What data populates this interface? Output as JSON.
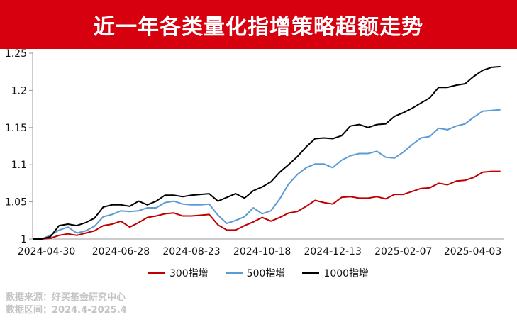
{
  "header": {
    "title": "近一年各类量化指增策略超额走势"
  },
  "footer": {
    "source_line": "数据来源：好买基金研究中心",
    "range_line": "数据区间：2024.4-2025.4"
  },
  "chart_data": {
    "type": "line",
    "title": "近一年各类量化指增策略超额走势",
    "xlabel": "",
    "ylabel": "",
    "ylim": [
      1,
      1.25
    ],
    "yticks": [
      "1",
      "1.05",
      "1.1",
      "1.15",
      "1.2",
      "1.25"
    ],
    "x_tick_labels": [
      "2024-04-30",
      "2024-06-28",
      "2024-08-23",
      "2024-10-18",
      "2024-12-13",
      "2025-02-07",
      "2025-04-03"
    ],
    "legend_position": "bottom",
    "grid": false,
    "x": [
      "2024-04-19",
      "2024-04-26",
      "2024-05-03",
      "2024-05-10",
      "2024-05-17",
      "2024-05-24",
      "2024-05-31",
      "2024-06-07",
      "2024-06-14",
      "2024-06-21",
      "2024-06-28",
      "2024-07-05",
      "2024-07-12",
      "2024-07-19",
      "2024-07-26",
      "2024-08-02",
      "2024-08-09",
      "2024-08-16",
      "2024-08-23",
      "2024-08-30",
      "2024-09-06",
      "2024-09-13",
      "2024-09-20",
      "2024-09-27",
      "2024-10-04",
      "2024-10-11",
      "2024-10-18",
      "2024-10-25",
      "2024-11-01",
      "2024-11-08",
      "2024-11-15",
      "2024-11-22",
      "2024-11-29",
      "2024-12-06",
      "2024-12-13",
      "2024-12-20",
      "2024-12-27",
      "2025-01-03",
      "2025-01-10",
      "2025-01-17",
      "2025-01-24",
      "2025-01-31",
      "2025-02-07",
      "2025-02-14",
      "2025-02-21",
      "2025-02-28",
      "2025-03-07",
      "2025-03-14",
      "2025-03-21",
      "2025-03-28",
      "2025-04-04",
      "2025-04-11",
      "2025-04-18",
      "2025-04-25"
    ],
    "series": [
      {
        "name": "300指增",
        "color": "#c00000",
        "values": [
          1.0,
          1.0,
          1.001,
          1.005,
          1.007,
          1.005,
          1.008,
          1.011,
          1.018,
          1.02,
          1.024,
          1.016,
          1.022,
          1.029,
          1.031,
          1.034,
          1.035,
          1.031,
          1.031,
          1.032,
          1.033,
          1.019,
          1.012,
          1.012,
          1.018,
          1.023,
          1.029,
          1.024,
          1.029,
          1.035,
          1.037,
          1.044,
          1.052,
          1.049,
          1.047,
          1.056,
          1.057,
          1.055,
          1.055,
          1.057,
          1.054,
          1.06,
          1.06,
          1.064,
          1.068,
          1.069,
          1.075,
          1.073,
          1.078,
          1.079,
          1.083,
          1.09,
          1.091,
          1.091
        ]
      },
      {
        "name": "500指增",
        "color": "#5b9bd5",
        "values": [
          1.0,
          1.0,
          1.005,
          1.012,
          1.016,
          1.008,
          1.011,
          1.017,
          1.03,
          1.033,
          1.038,
          1.037,
          1.038,
          1.042,
          1.042,
          1.049,
          1.051,
          1.047,
          1.046,
          1.046,
          1.047,
          1.032,
          1.021,
          1.025,
          1.03,
          1.042,
          1.034,
          1.038,
          1.054,
          1.074,
          1.087,
          1.096,
          1.101,
          1.101,
          1.096,
          1.106,
          1.112,
          1.115,
          1.115,
          1.118,
          1.11,
          1.109,
          1.117,
          1.127,
          1.136,
          1.138,
          1.149,
          1.147,
          1.152,
          1.155,
          1.164,
          1.172,
          1.173,
          1.174
        ]
      },
      {
        "name": "1000指增",
        "color": "#000000",
        "values": [
          1.0,
          1.0,
          1.003,
          1.018,
          1.02,
          1.018,
          1.022,
          1.028,
          1.043,
          1.046,
          1.046,
          1.044,
          1.051,
          1.046,
          1.051,
          1.059,
          1.059,
          1.057,
          1.059,
          1.06,
          1.061,
          1.051,
          1.056,
          1.061,
          1.055,
          1.065,
          1.07,
          1.077,
          1.09,
          1.1,
          1.111,
          1.124,
          1.135,
          1.136,
          1.135,
          1.139,
          1.152,
          1.154,
          1.15,
          1.154,
          1.155,
          1.165,
          1.17,
          1.176,
          1.183,
          1.19,
          1.204,
          1.204,
          1.207,
          1.209,
          1.219,
          1.227,
          1.231,
          1.232
        ]
      }
    ]
  }
}
